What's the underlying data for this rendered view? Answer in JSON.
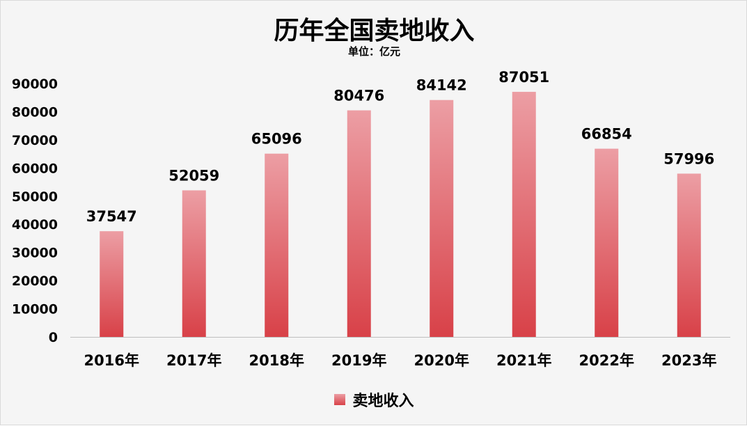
{
  "chart_data": {
    "type": "bar",
    "title": "历年全国卖地收入",
    "subtitle": "单位：亿元",
    "categories": [
      "2016年",
      "2017年",
      "2018年",
      "2019年",
      "2020年",
      "2021年",
      "2022年",
      "2023年"
    ],
    "series": [
      {
        "name": "卖地收入",
        "values": [
          37547,
          52059,
          65096,
          80476,
          84142,
          87051,
          66854,
          57996
        ]
      }
    ],
    "ylim": [
      0,
      90000
    ],
    "yticks": [
      0,
      10000,
      20000,
      30000,
      40000,
      50000,
      60000,
      70000,
      80000,
      90000
    ],
    "grid": false,
    "legend": "bottom",
    "bar_color_top": "#ec9ea4",
    "bar_color_bottom": "#d84148"
  }
}
